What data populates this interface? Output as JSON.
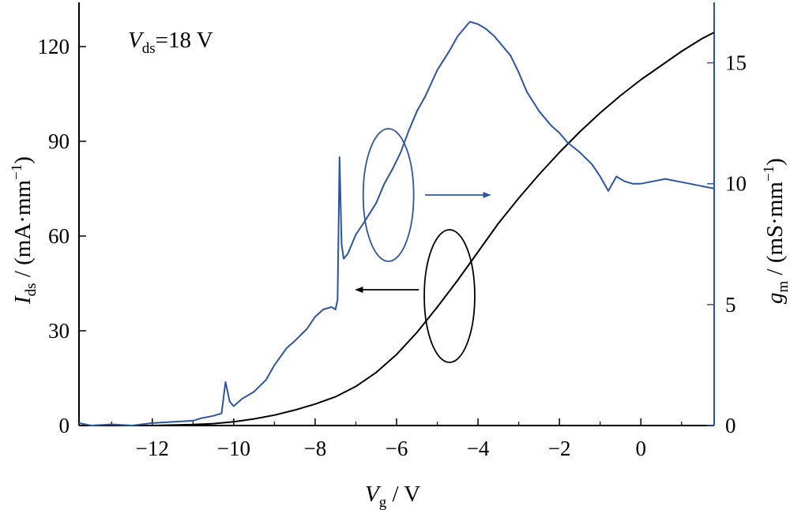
{
  "chart_data": {
    "type": "line",
    "annotation": {
      "main": "V",
      "sub": "ds",
      "rest": "=18 V"
    },
    "xlabel": {
      "main": "V",
      "sub": "g",
      "rest": " / V"
    },
    "ylabel_left": {
      "main": "I",
      "sub": "ds",
      "rest": " / (mA·mm",
      "sup": "−1",
      "close": ")"
    },
    "ylabel_right": {
      "main": "g",
      "sub": "m",
      "rest": " / (mS·mm",
      "sup": "−1",
      "close": ")"
    },
    "xlim": [
      -13.8,
      1.8
    ],
    "ylim_left": [
      0,
      134
    ],
    "ylim_right": [
      0,
      17.5
    ],
    "x_ticks": [
      -12,
      -10,
      -8,
      -6,
      -4,
      -2,
      0
    ],
    "x_tick_labels": [
      "−12",
      "−10",
      "−8",
      "−6",
      "−4",
      "−2",
      "0"
    ],
    "y_left_ticks": [
      0,
      30,
      60,
      90,
      120
    ],
    "y_left_tick_labels": [
      "0",
      "30",
      "60",
      "90",
      "120"
    ],
    "y_right_ticks": [
      0,
      5,
      10,
      15
    ],
    "y_right_tick_labels": [
      "0",
      "5",
      "10",
      "15"
    ],
    "colors": {
      "ids": "#000000",
      "gm": "#2c55a0",
      "right_axis": "#2c55a0"
    },
    "series": [
      {
        "axis": "left",
        "x": [
          -13.8,
          -12,
          -11,
          -10.5,
          -10,
          -9.5,
          -9,
          -8.5,
          -8,
          -7.5,
          -7,
          -6.5,
          -6,
          -5.5,
          -5,
          -4.5,
          -4,
          -3.5,
          -3,
          -2.5,
          -2,
          -1.5,
          -1,
          -0.5,
          0,
          0.5,
          1,
          1.5,
          1.8
        ],
        "y": [
          0,
          0,
          0.3,
          0.6,
          1.2,
          2.1,
          3.3,
          4.9,
          6.8,
          9.1,
          12.4,
          16.8,
          22.5,
          29.5,
          37.5,
          46,
          55,
          64,
          72,
          79.5,
          86.5,
          93,
          99,
          104.5,
          109.5,
          114,
          118.5,
          122.5,
          124.5
        ]
      },
      {
        "axis": "right",
        "x": [
          -13.8,
          -13.5,
          -13,
          -12.5,
          -12,
          -11.5,
          -11,
          -10.8,
          -10.5,
          -10.3,
          -10.2,
          -10.1,
          -10,
          -9.8,
          -9.5,
          -9.2,
          -9,
          -8.7,
          -8.5,
          -8.2,
          -8,
          -7.8,
          -7.6,
          -7.5,
          -7.45,
          -7.4,
          -7.35,
          -7.3,
          -7.2,
          -7,
          -6.8,
          -6.5,
          -6.3,
          -6.1,
          -5.9,
          -5.7,
          -5.5,
          -5.3,
          -5,
          -4.7,
          -4.5,
          -4.3,
          -4.2,
          -4,
          -3.8,
          -3.6,
          -3.4,
          -3.2,
          -3,
          -2.8,
          -2.5,
          -2.2,
          -2,
          -1.8,
          -1.5,
          -1.2,
          -1,
          -0.8,
          -0.6,
          -0.4,
          -0.2,
          0,
          0.3,
          0.6,
          0.9,
          1.2,
          1.5,
          1.8
        ],
        "y": [
          0.1,
          0,
          0.05,
          0,
          0.1,
          0.15,
          0.2,
          0.3,
          0.4,
          0.5,
          1.8,
          1.0,
          0.8,
          1.1,
          1.4,
          1.9,
          2.5,
          3.2,
          3.5,
          4.0,
          4.5,
          4.8,
          4.9,
          4.8,
          5.2,
          11.1,
          7.5,
          6.9,
          7.1,
          7.9,
          8.4,
          9.2,
          10.0,
          10.6,
          11.3,
          12.2,
          13.0,
          13.6,
          14.7,
          15.5,
          16.1,
          16.5,
          16.7,
          16.6,
          16.4,
          16.1,
          15.7,
          15.3,
          14.6,
          13.8,
          13.0,
          12.4,
          12.1,
          11.7,
          11.3,
          10.8,
          10.3,
          9.7,
          10.3,
          10.1,
          10.0,
          10.0,
          10.1,
          10.2,
          10.1,
          10.0,
          9.9,
          9.8
        ]
      }
    ],
    "markers": [
      {
        "type": "ellipse",
        "cx": -6.2,
        "cy_left": 73,
        "rx_data": 0.62,
        "ry_left": 21,
        "color": "#2c55a0"
      },
      {
        "type": "arrow",
        "from": [
          -5.3,
          73
        ],
        "to": [
          -3.7,
          73
        ],
        "color": "#2c55a0"
      },
      {
        "type": "ellipse",
        "cx": -4.7,
        "cy_left": 41,
        "rx_data": 0.62,
        "ry_left": 21,
        "color": "#000000"
      },
      {
        "type": "arrow",
        "from": [
          -5.45,
          43
        ],
        "to": [
          -7.0,
          43
        ],
        "color": "#000000"
      }
    ]
  }
}
